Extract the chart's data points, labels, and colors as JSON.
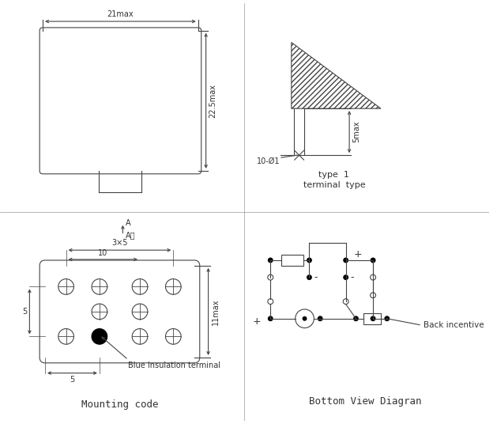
{
  "bg_color": "#ffffff",
  "line_color": "#444444",
  "sections": {
    "top_left": {
      "label_width": "21max",
      "label_height": "22.5max"
    },
    "top_right": {
      "label_dim": "10-Ø1",
      "label_h": "5max",
      "type_label": "type  1",
      "terminal_label": "terminal  type"
    },
    "bottom_left": {
      "arrow_label": "A",
      "arrow_dir": "A向",
      "dim_3x5": "3×5",
      "dim_10": "10",
      "dim_5v": "5",
      "dim_5h": "5",
      "dim_11max": "11max",
      "blue_label": "Blue Insulation terminal",
      "mounting_label": "Mounting code"
    },
    "bottom_right": {
      "plus1": "+",
      "minus1": "-",
      "minus2": "-",
      "plus2": "+",
      "back_label": "Back incentive",
      "bottom_label": "Bottom View Diagran"
    }
  }
}
